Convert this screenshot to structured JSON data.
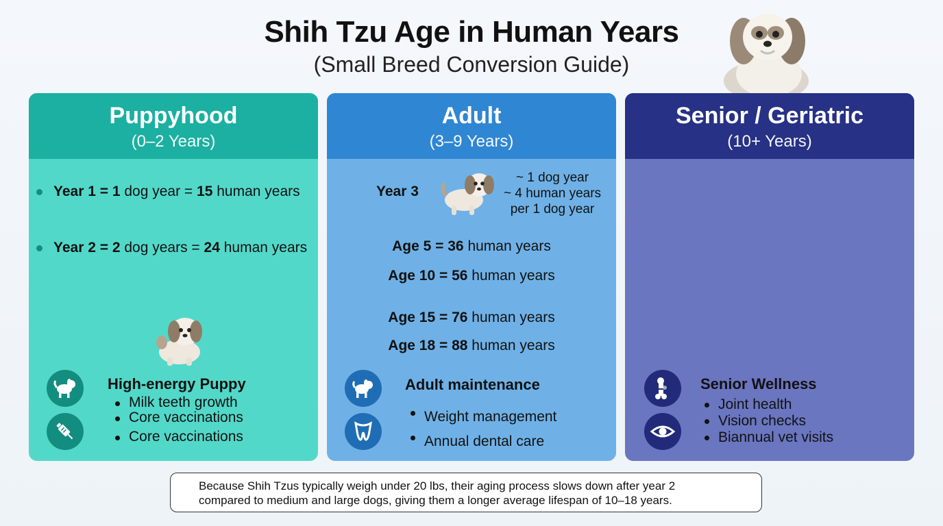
{
  "header": {
    "title": "Shih Tzu Age in Human Years",
    "subtitle": "(Small Breed Conversion Guide)"
  },
  "panels": [
    {
      "title": "Puppyhood",
      "range": "(0–2 Years)",
      "rows": [
        {
          "label": "Year 1 = 1",
          "unit1": "dog year =",
          "value": "15",
          "unit2": "human years"
        },
        {
          "label": "Year 2 = 2",
          "unit1": "dog years =",
          "value": "24",
          "unit2": "human years"
        }
      ],
      "section_title": "High-energy Puppy",
      "bullets": [
        "Milk teeth growth",
        "Core vaccinations",
        "Core vaccinations"
      ]
    },
    {
      "title": "Adult",
      "range": "(3–9 Years)",
      "year3": {
        "label": "Year 3",
        "note": [
          "~ 1 dog year",
          "~ 4 human years",
          "per 1 dog year"
        ]
      },
      "ages": [
        {
          "label": "Age 5 = 36",
          "unit": "human years"
        },
        {
          "label": "Age 10 = 56",
          "unit": "human years"
        },
        {
          "label": "Age 15 = 76",
          "unit": "human years"
        },
        {
          "label": "Age 18 = 88",
          "unit": "human years"
        }
      ],
      "section_title": "Adult maintenance",
      "bullets": [
        "Weight management",
        "Annual dental care"
      ]
    },
    {
      "title": "Senior / Geriatric",
      "range": "(10+ Years)",
      "section_title": "Senior Wellness",
      "bullets": [
        "Joint health",
        "Vision checks",
        "Biannual vet visits"
      ]
    }
  ],
  "footer": {
    "line1": "Because Shih Tzus typically weigh under 20 lbs, their aging process slows down after year 2",
    "line2": "compared to medium and large dogs, giving them a longer average lifespan of 10–18 years."
  },
  "icons": {
    "hero": "shih-tzu-dog-icon",
    "puppy1": "puppy-icon",
    "puppy2": "syringe-icon",
    "adult1": "dog-icon",
    "adult2": "tooth-icon",
    "senior1": "joint-bone-icon",
    "senior2": "eye-icon"
  },
  "colors": {
    "puppy_header": "#1bb0a1",
    "puppy_body": "#52d8c9",
    "adult_header": "#2f86d3",
    "adult_body": "#6fb1e6",
    "senior_header": "#273185",
    "senior_body": "#6a76c0"
  }
}
